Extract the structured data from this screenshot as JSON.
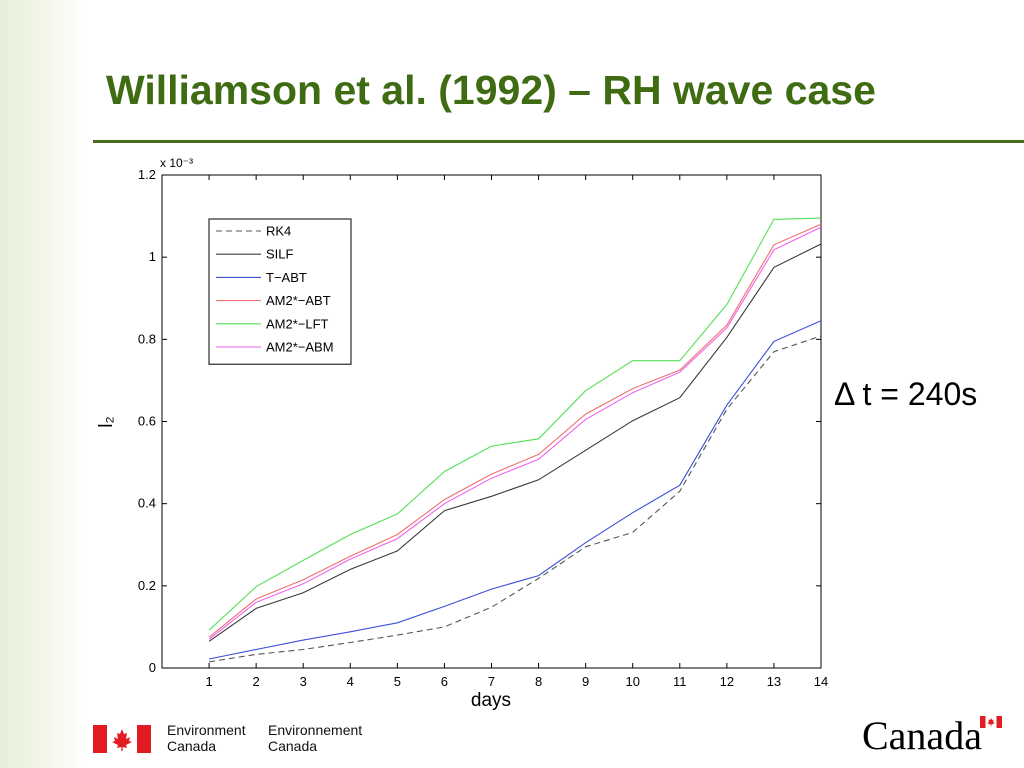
{
  "slide": {
    "title": "Williamson et al. (1992) – RH wave case",
    "annotation": "Δ t = 240s",
    "accent_color": "#3f6b12"
  },
  "footer": {
    "department_en_line1": "Environment",
    "department_en_line2": "Canada",
    "department_fr_line1": "Environnement",
    "department_fr_line2": "Canada",
    "wordmark": "Canada",
    "flag_icon": "maple-leaf-flag-icon",
    "flag_color": "#e31c23"
  },
  "chart_data": {
    "type": "line",
    "title": "",
    "xlabel": "days",
    "ylabel": "l₂",
    "exponent_label": "x 10⁻³",
    "x": [
      1,
      2,
      3,
      4,
      5,
      6,
      7,
      8,
      9,
      10,
      11,
      12,
      13,
      14
    ],
    "xlim": [
      0,
      14
    ],
    "ylim": [
      0,
      1.2
    ],
    "xticks": [
      "1",
      "2",
      "3",
      "4",
      "5",
      "6",
      "7",
      "8",
      "9",
      "10",
      "11",
      "12",
      "13",
      "14"
    ],
    "yticks": [
      "0",
      "0.2",
      "0.4",
      "0.6",
      "0.8",
      "1",
      "1.2"
    ],
    "grid": false,
    "legend_position": "top-left",
    "series": [
      {
        "name": "RK4",
        "color": "#555555",
        "dashed": true,
        "values": [
          0.015,
          0.033,
          0.045,
          0.062,
          0.08,
          0.1,
          0.148,
          0.218,
          0.295,
          0.33,
          0.43,
          0.63,
          0.77,
          0.808
        ]
      },
      {
        "name": "SILF",
        "color": "#3a3a3a",
        "dashed": false,
        "values": [
          0.065,
          0.145,
          0.183,
          0.24,
          0.285,
          0.383,
          0.418,
          0.458,
          0.53,
          0.602,
          0.658,
          0.805,
          0.975,
          1.032
        ]
      },
      {
        "name": "T−ABT",
        "color": "#3b4fd8",
        "dashed": false,
        "values": [
          0.022,
          0.045,
          0.068,
          0.088,
          0.11,
          0.15,
          0.192,
          0.225,
          0.305,
          0.378,
          0.445,
          0.64,
          0.795,
          0.845
        ]
      },
      {
        "name": "AM2*−ABT",
        "color": "#f07070",
        "dashed": false,
        "values": [
          0.075,
          0.168,
          0.215,
          0.272,
          0.325,
          0.41,
          0.472,
          0.52,
          0.618,
          0.68,
          0.725,
          0.835,
          1.03,
          1.08
        ]
      },
      {
        "name": "AM2*−LFT",
        "color": "#55e055",
        "dashed": false,
        "values": [
          0.092,
          0.198,
          0.262,
          0.325,
          0.375,
          0.478,
          0.54,
          0.558,
          0.675,
          0.748,
          0.748,
          0.885,
          1.092,
          1.095
        ]
      },
      {
        "name": "AM2*−ABM",
        "color": "#f060f0",
        "dashed": false,
        "values": [
          0.07,
          0.16,
          0.205,
          0.265,
          0.315,
          0.4,
          0.462,
          0.508,
          0.605,
          0.67,
          0.72,
          0.828,
          1.018,
          1.073
        ]
      }
    ]
  }
}
